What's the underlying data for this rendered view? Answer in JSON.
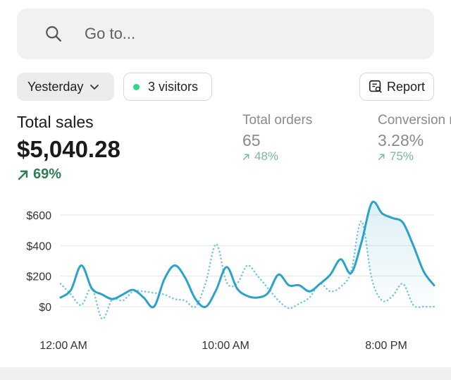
{
  "search": {
    "placeholder": "Go to...",
    "icon": "search-icon"
  },
  "filters": {
    "date_label": "Yesterday",
    "visitors_label": "3 visitors",
    "visitors_dot_color": "#2fd98a",
    "report_label": "Report"
  },
  "metrics": [
    {
      "title": "Total sales",
      "value": "$5,040.28",
      "change": "69%",
      "trend": "up"
    },
    {
      "title": "Total orders",
      "value": "65",
      "change": "48%",
      "trend": "up"
    },
    {
      "title": "Conversion r",
      "value": "3.28%",
      "change": "75%",
      "trend": "up"
    }
  ],
  "chart_data": {
    "type": "line",
    "y_ticks": [
      "$600",
      "$400",
      "$200",
      "$0"
    ],
    "x_ticks": [
      "12:00 AM",
      "10:00 AM",
      "8:00 PM"
    ],
    "ylim": [
      0,
      700
    ],
    "grid": true,
    "series": [
      {
        "style": "solid",
        "color": "#2ba3c9",
        "values": [
          60,
          110,
          270,
          120,
          80,
          50,
          80,
          110,
          60,
          0,
          180,
          270,
          190,
          50,
          0,
          110,
          260,
          120,
          70,
          60,
          90,
          210,
          140,
          140,
          100,
          150,
          210,
          310,
          220,
          420,
          680,
          610,
          580,
          550,
          400,
          230,
          140
        ]
      },
      {
        "style": "dotted",
        "color": "#79c5de",
        "values": [
          150,
          80,
          10,
          120,
          -80,
          50,
          40,
          100,
          100,
          90,
          80,
          50,
          40,
          0,
          160,
          410,
          160,
          150,
          270,
          200,
          120,
          40,
          -10,
          20,
          60,
          150,
          100,
          130,
          230,
          560,
          180,
          40,
          70,
          150,
          10,
          0,
          0
        ]
      }
    ]
  }
}
